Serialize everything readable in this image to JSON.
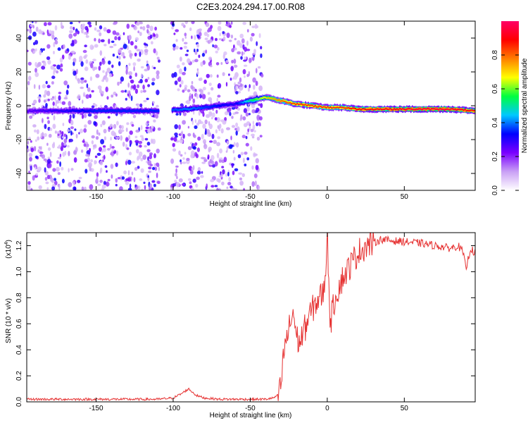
{
  "title": "C2E3.2024.294.17.00.R08",
  "chart_data": [
    {
      "type": "heatmap",
      "title": "C2E3.2024.294.17.00.R08",
      "xlabel": "Height of straight line (km)",
      "ylabel": "Frequency (Hz)",
      "xlim": [
        -195,
        96
      ],
      "ylim": [
        -50,
        50
      ],
      "xticks": [
        -150,
        -100,
        -50,
        0,
        50
      ],
      "yticks": [
        -40,
        -20,
        0,
        20,
        40
      ],
      "grid": false,
      "colorbar": {
        "label": "Normalized spectral amplitude",
        "range": [
          0,
          1
        ],
        "ticks": [
          "0.0",
          "0.2",
          "0.4",
          "0.6",
          "0.8"
        ],
        "colors": [
          "#ffffff",
          "#c9a0f5",
          "#7a00ff",
          "#0000ff",
          "#00c8ff",
          "#00ff40",
          "#ffff00",
          "#ff7f00",
          "#ff0000",
          "#ff0066"
        ]
      },
      "features": {
        "noise_regions_km": [
          [
            -195,
            -109
          ],
          [
            -101,
            -85
          ],
          [
            -85,
            -42
          ]
        ],
        "ridge": {
          "x": [
            -195,
            -150,
            -110,
            -90,
            -60,
            -50,
            -45,
            -40,
            -35,
            -30,
            -20,
            -10,
            0,
            10,
            20,
            40,
            60,
            80,
            96
          ],
          "y": [
            -3,
            -3,
            -3,
            -2,
            1,
            3,
            4,
            5,
            4,
            3,
            1,
            0,
            -1,
            -1,
            -2,
            -2,
            -2,
            -2,
            -3
          ],
          "peak_amplitude": [
            0.25,
            0.35,
            0.35,
            0.4,
            0.3,
            0.5,
            0.6,
            0.7,
            0.75,
            0.8,
            0.85,
            0.85,
            0.85,
            0.85,
            0.9,
            0.92,
            0.95,
            0.95,
            0.9
          ]
        }
      }
    },
    {
      "type": "line",
      "xlabel": "Height of straight line (km)",
      "ylabel": "SNR (10 * v/v)",
      "yscale_label": "(x10",
      "yscale_exp": "4",
      "xlim": [
        -195,
        96
      ],
      "ylim": [
        0,
        1.3
      ],
      "xticks": [
        -150,
        -100,
        -50,
        0,
        50
      ],
      "yticks": [
        "0.0",
        "0.2",
        "0.4",
        "0.6",
        "0.8",
        "1.0",
        "1.2"
      ],
      "grid": false,
      "line_color": "#e63232",
      "series": [
        {
          "x": [
            -195,
            -150,
            -110,
            -100,
            -95,
            -90,
            -85,
            -80,
            -70,
            -50,
            -40,
            -35,
            -32,
            -30,
            -28,
            -25,
            -22,
            -20,
            -18,
            -15,
            -12,
            -10,
            -8,
            -5,
            -2,
            0,
            2,
            5,
            8,
            10,
            15,
            20,
            25,
            30,
            35,
            40,
            50,
            60,
            70,
            80,
            85,
            88,
            90,
            93,
            96
          ],
          "y": [
            0.02,
            0.02,
            0.02,
            0.03,
            0.06,
            0.1,
            0.05,
            0.03,
            0.02,
            0.02,
            0.02,
            0.03,
            0.05,
            0.12,
            0.4,
            0.55,
            0.7,
            0.5,
            0.45,
            0.55,
            0.65,
            0.7,
            0.75,
            0.8,
            0.85,
            1.28,
            0.6,
            0.8,
            0.9,
            0.95,
            1.05,
            1.15,
            1.2,
            1.22,
            1.25,
            1.24,
            1.23,
            1.22,
            1.2,
            1.18,
            1.2,
            1.15,
            1.02,
            1.18,
            1.14
          ]
        }
      ]
    }
  ]
}
